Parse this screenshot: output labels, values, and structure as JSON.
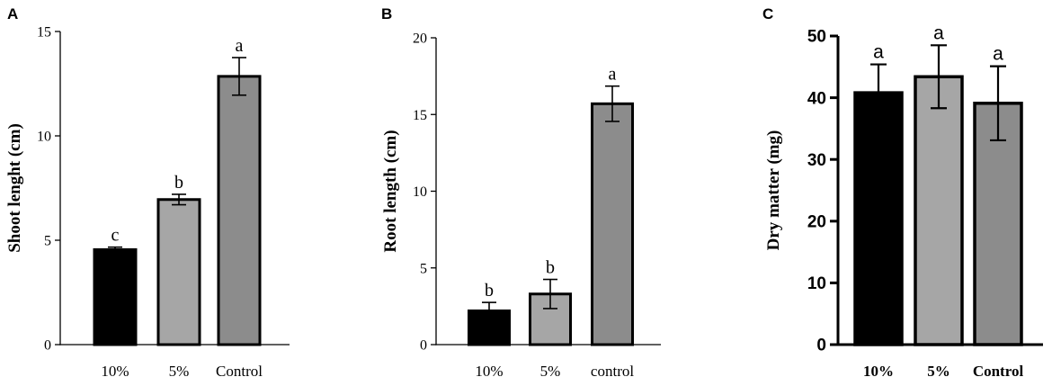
{
  "chart_data": [
    {
      "type": "bar",
      "panel": "A",
      "ylabel": "Shoot lenght (cm)",
      "categories": [
        "10%",
        "5%",
        "Control"
      ],
      "values": [
        4.55,
        6.95,
        12.85
      ],
      "errors": [
        0.12,
        0.25,
        0.9
      ],
      "letters": [
        "c",
        "b",
        "a"
      ],
      "colors": [
        "#000000",
        "#a6a6a6",
        "#8c8c8c"
      ],
      "ylim": [
        0,
        15
      ],
      "yticks": [
        0,
        5,
        10,
        15
      ],
      "grid": false
    },
    {
      "type": "bar",
      "panel": "B",
      "ylabel": "Root length (cm)",
      "categories": [
        "10%",
        "5%",
        "control"
      ],
      "values": [
        2.2,
        3.3,
        15.7
      ],
      "errors": [
        0.55,
        0.95,
        1.15
      ],
      "letters": [
        "b",
        "b",
        "a"
      ],
      "colors": [
        "#000000",
        "#a6a6a6",
        "#8c8c8c"
      ],
      "ylim": [
        0,
        20
      ],
      "yticks": [
        0,
        5,
        10,
        15,
        20
      ],
      "grid": false
    },
    {
      "type": "bar",
      "panel": "C",
      "ylabel": "Dry matter (mg)",
      "categories": [
        "10%",
        "5%",
        "Control"
      ],
      "values": [
        40.8,
        43.4,
        39.1
      ],
      "errors": [
        4.6,
        5.1,
        6.0
      ],
      "letters": [
        "a",
        "a",
        "a"
      ],
      "colors": [
        "#000000",
        "#a6a6a6",
        "#8c8c8c"
      ],
      "ylim": [
        0,
        50
      ],
      "yticks": [
        0,
        10,
        20,
        30,
        40,
        50
      ],
      "grid": false
    }
  ]
}
